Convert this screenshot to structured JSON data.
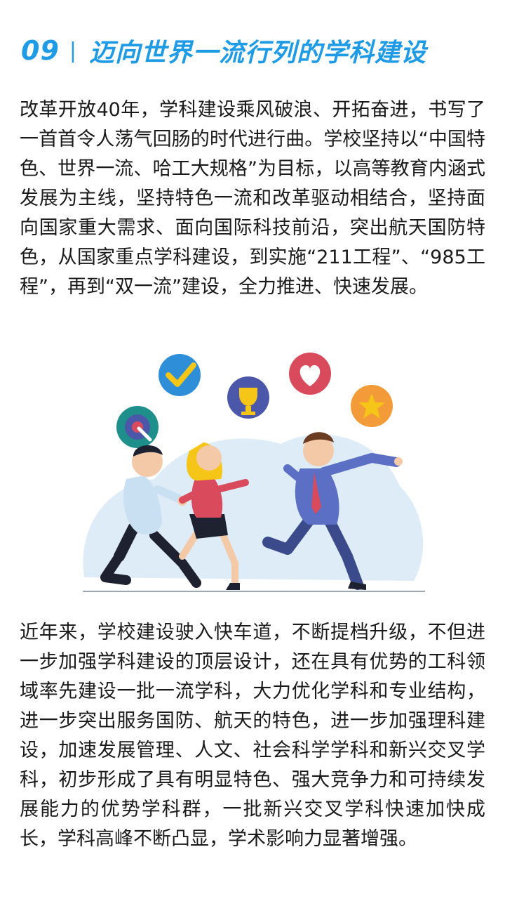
{
  "header": {
    "number": "09",
    "separator": "|",
    "title": "迈向世界一流行列的学科建设"
  },
  "paragraphs": [
    "改革开放40年，学科建设乘风破浪、开拓奋进，书写了一首首令人荡气回肠的时代进行曲。学校坚持以“中国特色、世界一流、哈工大规格”为目标，以高等教育内涵式发展为主线，坚持特色一流和改革驱动相结合，坚持面向国家重大需求、面向国际科技前沿，突出航天国防特色，从国家重点学科建设，到实施“211工程”、“985工程”，再到“双一流”建设，全力推进、快速发展。",
    "近年来，学校建设驶入快车道，不断提档升级，不但进一步加强学科建设的顶层设计，还在具有优势的工科领域率先建设一批一流学科，大力优化学科和专业结构，进一步突出服务国防、航天的特色，进一步加强理科建设，加速发展管理、人文、社会科学学科和新兴交叉学科，初步形成了具有明显特色、强大竞争力和可持续发展能力的优势学科群，一批新兴交叉学科快速加快成长，学科高峰不断凸显，学术影响力显著增强。"
  ],
  "illustration": {
    "icons": [
      "check-icon",
      "trophy-icon",
      "heart-icon",
      "star-icon",
      "target-icon"
    ],
    "colors": {
      "accent": "#1f9be6",
      "check_bg": "#2e8fd8",
      "check_mark": "#f5c518",
      "trophy_bg": "#4b57a8",
      "heart_bg": "#d94a5c",
      "star_bg": "#f29b38",
      "target_bg": "#1e8f8a",
      "blob": "#deecf8"
    }
  }
}
